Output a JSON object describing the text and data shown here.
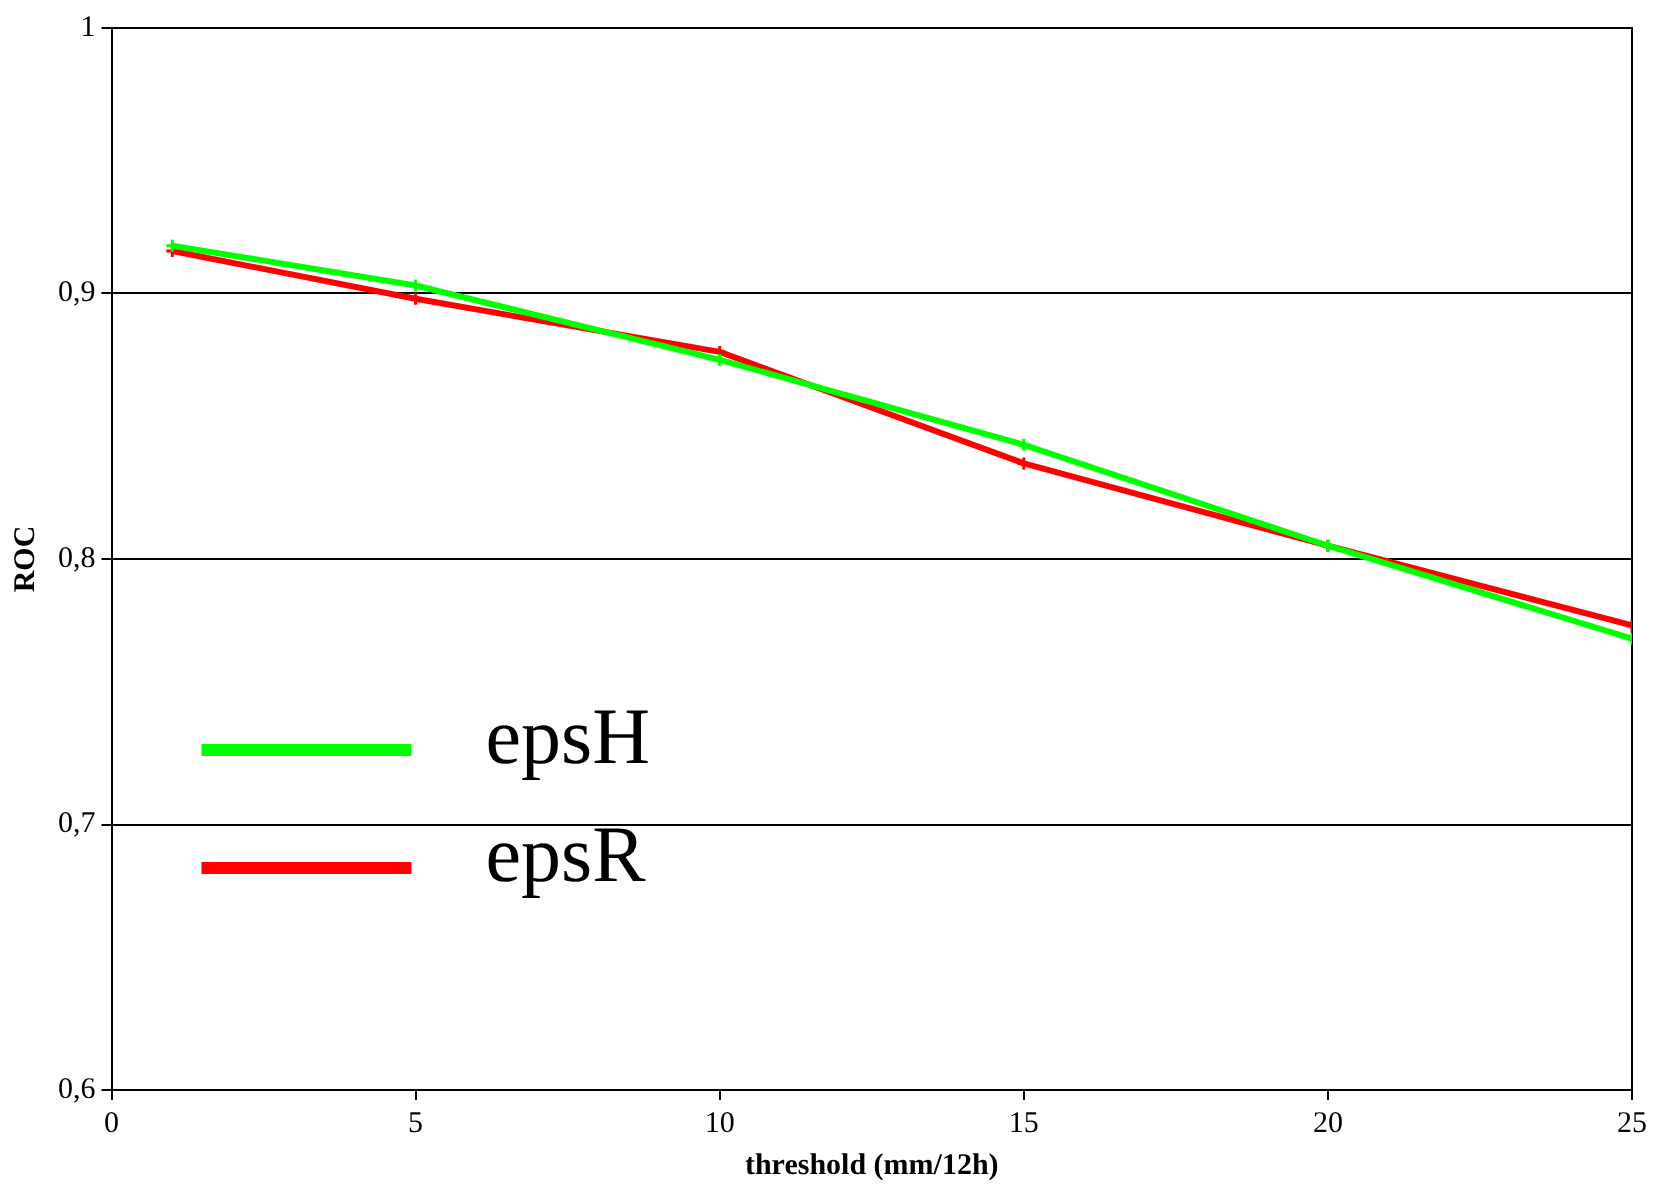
{
  "chart_data": {
    "type": "line",
    "xlabel": "threshold (mm/12h)",
    "ylabel": "ROC",
    "x": [
      1,
      5,
      10,
      15,
      20,
      25
    ],
    "series": [
      {
        "name": "epsH",
        "color": "#00ff00",
        "values": [
          0.918,
          0.903,
          0.875,
          0.843,
          0.805,
          0.77
        ]
      },
      {
        "name": "epsR",
        "color": "#ff0000",
        "values": [
          0.916,
          0.898,
          0.878,
          0.836,
          0.805,
          0.775
        ]
      }
    ],
    "xlim": [
      0,
      25
    ],
    "xticks": [
      0,
      5,
      10,
      15,
      20,
      25
    ],
    "ylim": [
      0.6,
      1
    ],
    "yticks": [
      {
        "value": 0.6,
        "label": "0,6"
      },
      {
        "value": 0.7,
        "label": "0,7"
      },
      {
        "value": 0.8,
        "label": "0,8"
      },
      {
        "value": 0.9,
        "label": "0,9"
      },
      1
    ],
    "grid": "y",
    "line_style": "solid",
    "marker": "cross",
    "legend": "bottom left"
  }
}
